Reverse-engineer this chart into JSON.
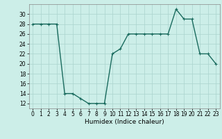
{
  "x": [
    0,
    1,
    2,
    3,
    4,
    5,
    6,
    7,
    8,
    9,
    10,
    11,
    12,
    13,
    14,
    15,
    16,
    17,
    18,
    19,
    20,
    21,
    22,
    23
  ],
  "y": [
    28,
    28,
    28,
    28,
    14,
    14,
    13,
    12,
    12,
    12,
    22,
    23,
    26,
    26,
    26,
    26,
    26,
    26,
    31,
    29,
    29,
    22,
    22,
    20
  ],
  "line_color": "#1a6b5e",
  "marker": "+",
  "marker_size": 3,
  "bg_color": "#cceee8",
  "grid_color": "#aad4ce",
  "xlabel": "Humidex (Indice chaleur)",
  "xlim": [
    -0.5,
    23.5
  ],
  "ylim": [
    11,
    32
  ],
  "yticks": [
    12,
    14,
    16,
    18,
    20,
    22,
    24,
    26,
    28,
    30
  ],
  "xticks": [
    0,
    1,
    2,
    3,
    4,
    5,
    6,
    7,
    8,
    9,
    10,
    11,
    12,
    13,
    14,
    15,
    16,
    17,
    18,
    19,
    20,
    21,
    22,
    23
  ],
  "tick_label_size": 5.5,
  "xlabel_size": 6.5,
  "linewidth": 1.0
}
